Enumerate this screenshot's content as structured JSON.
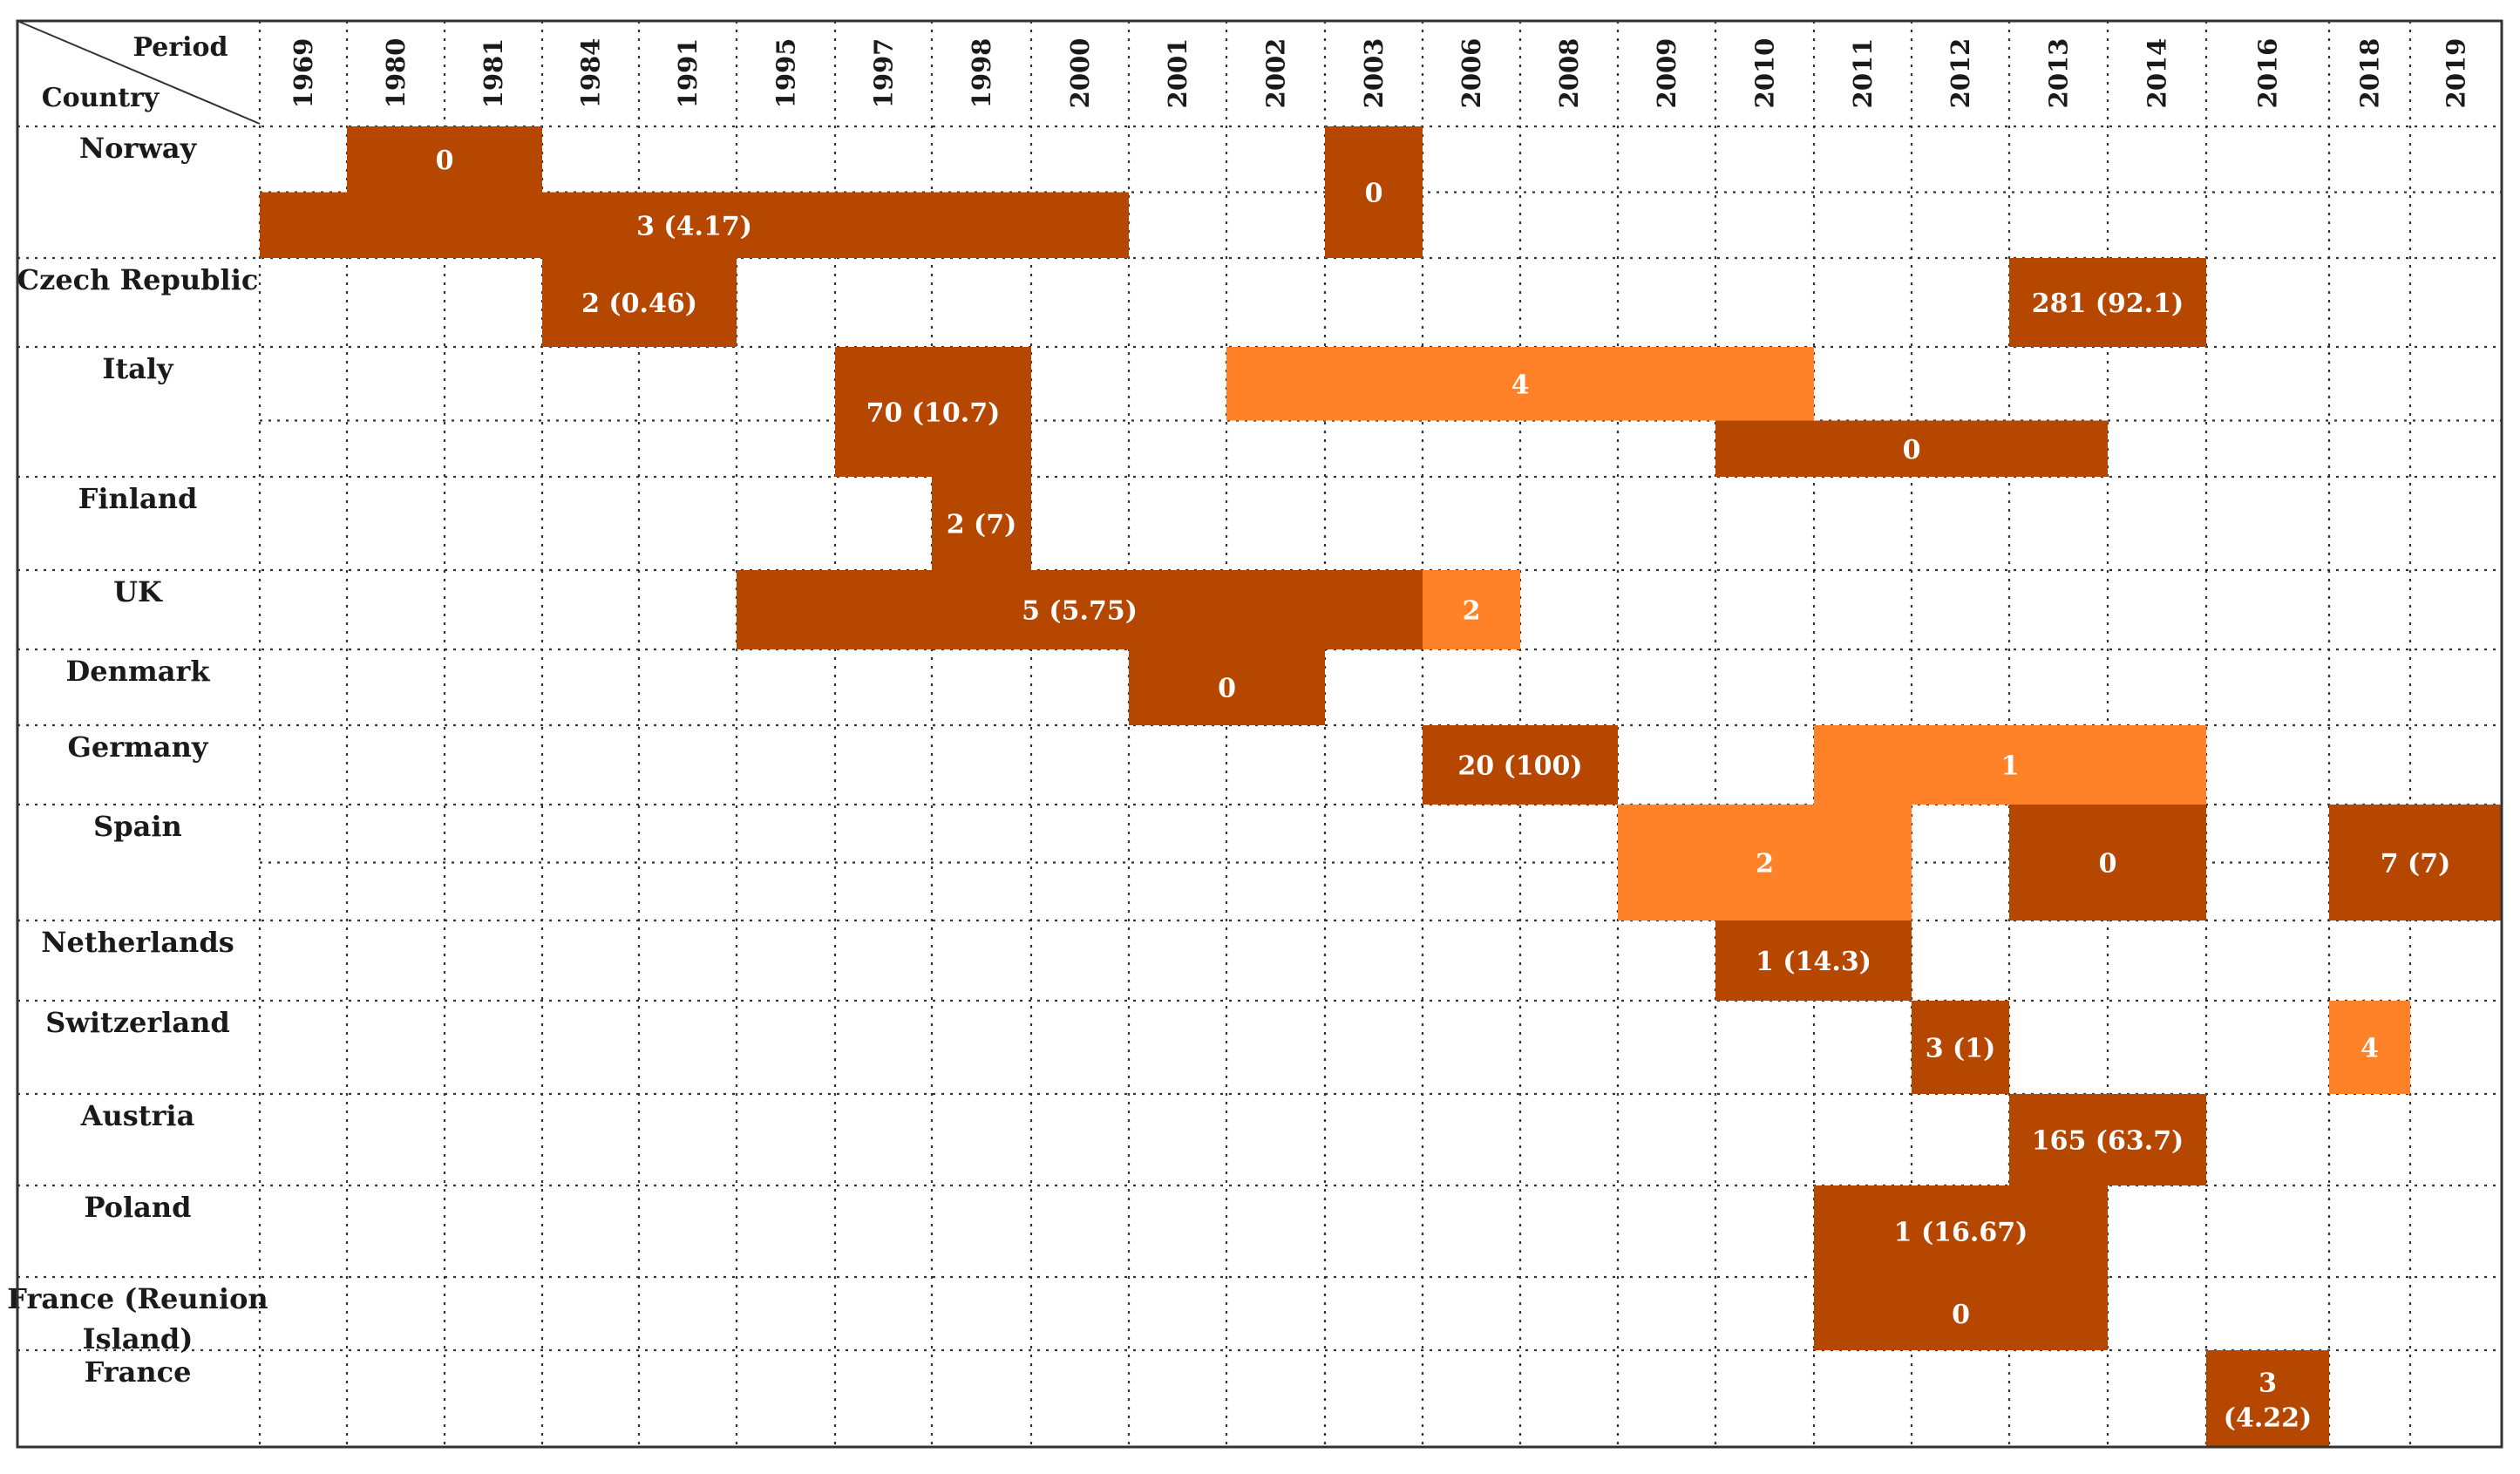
{
  "chart_data": {
    "type": "table",
    "header": {
      "period_label": "Period",
      "country_label": "Country"
    },
    "years": [
      "1969",
      "1980",
      "1981",
      "1984",
      "1991",
      "1995",
      "1997",
      "1998",
      "2000",
      "2001",
      "2002",
      "2003",
      "2006",
      "2008",
      "2009",
      "2010",
      "2011",
      "2012",
      "2013",
      "2014",
      "2016",
      "2018",
      "2019"
    ],
    "countries": [
      "Norway",
      "Czech Republic",
      "Italy",
      "Finland",
      "UK",
      "Denmark",
      "Germany",
      "Spain",
      "Netherlands",
      "Switzerland",
      "Austria",
      "Poland",
      "France (Reunion Island)",
      "France"
    ],
    "bars": [
      {
        "country": "Norway",
        "start": "1980",
        "end": "1981",
        "lane": 0,
        "lanes": 2,
        "label": "0",
        "shade": "dark"
      },
      {
        "country": "Norway",
        "start": "1969",
        "end": "2000",
        "lane": 1,
        "lanes": 2,
        "label": "3 (4.17)",
        "shade": "dark"
      },
      {
        "country": "Norway",
        "start": "2003",
        "end": "2003",
        "lane": 0,
        "lanes": 1,
        "label": "0",
        "shade": "dark"
      },
      {
        "country": "Czech Republic",
        "start": "1984",
        "end": "1991",
        "lane": 0,
        "lanes": 1,
        "label": "2 (0.46)",
        "shade": "dark"
      },
      {
        "country": "Czech Republic",
        "start": "2013",
        "end": "2014",
        "lane": 0,
        "lanes": 1,
        "label": "281 (92.1)",
        "shade": "dark"
      },
      {
        "country": "Italy",
        "start": "1997",
        "end": "1998",
        "lane": 0,
        "lanes": 1,
        "label": "70 (10.7)",
        "shade": "dark"
      },
      {
        "country": "Italy",
        "start": "2002",
        "end": "2010",
        "lane": 0,
        "lanes": 2,
        "label": "4",
        "shade": "light"
      },
      {
        "country": "Italy",
        "start": "2010",
        "end": "2013",
        "lane": 1,
        "lanes": 2,
        "label": "0",
        "shade": "dark"
      },
      {
        "country": "Finland",
        "start": "1998",
        "end": "1998",
        "lane": 0,
        "lanes": 1,
        "label": "2 (7)",
        "shade": "dark"
      },
      {
        "country": "UK",
        "start": "1995",
        "end": "2003",
        "lane": 0,
        "lanes": 1,
        "label": "5 (5.75)",
        "shade": "dark"
      },
      {
        "country": "UK",
        "start": "2006",
        "end": "2006",
        "lane": 0,
        "lanes": 1,
        "label": "2",
        "shade": "light"
      },
      {
        "country": "Denmark",
        "start": "2001",
        "end": "2002",
        "lane": 0,
        "lanes": 1,
        "label": "0",
        "shade": "dark"
      },
      {
        "country": "Germany",
        "start": "2006",
        "end": "2008",
        "lane": 0,
        "lanes": 1,
        "label": "20 (100)",
        "shade": "dark"
      },
      {
        "country": "Germany",
        "start": "2011",
        "end": "2014",
        "lane": 0,
        "lanes": 1,
        "label": "1",
        "shade": "light"
      },
      {
        "country": "Spain",
        "start": "2009",
        "end": "2011",
        "lane": 0,
        "lanes": 1,
        "label": "2",
        "shade": "light"
      },
      {
        "country": "Spain",
        "start": "2013",
        "end": "2014",
        "lane": 0,
        "lanes": 1,
        "label": "0",
        "shade": "dark"
      },
      {
        "country": "Spain",
        "start": "2018",
        "end": "2019",
        "lane": 0,
        "lanes": 1,
        "label": "7 (7)",
        "shade": "dark"
      },
      {
        "country": "Netherlands",
        "start": "2010",
        "end": "2011",
        "lane": 0,
        "lanes": 1,
        "label": "1 (14.3)",
        "shade": "dark"
      },
      {
        "country": "Switzerland",
        "start": "2012",
        "end": "2012",
        "lane": 0,
        "lanes": 1,
        "label": "3 (1)",
        "shade": "dark"
      },
      {
        "country": "Switzerland",
        "start": "2018",
        "end": "2018",
        "lane": 0,
        "lanes": 1,
        "label": "4",
        "shade": "light"
      },
      {
        "country": "Austria",
        "start": "2013",
        "end": "2014",
        "lane": 0,
        "lanes": 1,
        "label": "165 (63.7)",
        "shade": "dark"
      },
      {
        "country": "Poland",
        "start": "2011",
        "end": "2013",
        "lane": 0,
        "lanes": 1,
        "label": "1 (16.67)",
        "shade": "dark"
      },
      {
        "country": "France (Reunion Island)",
        "start": "2011",
        "end": "2013",
        "lane": 0,
        "lanes": 1,
        "label": "0",
        "shade": "dark"
      },
      {
        "country": "France",
        "start": "2016",
        "end": "2016",
        "lane": 0,
        "lanes": 1,
        "label": "3 (4.22)",
        "shade": "dark"
      }
    ],
    "colors": {
      "dark": "#b54700",
      "light": "#ff8229",
      "text_on_bar": "#ffffff",
      "grid": "#333333"
    }
  }
}
